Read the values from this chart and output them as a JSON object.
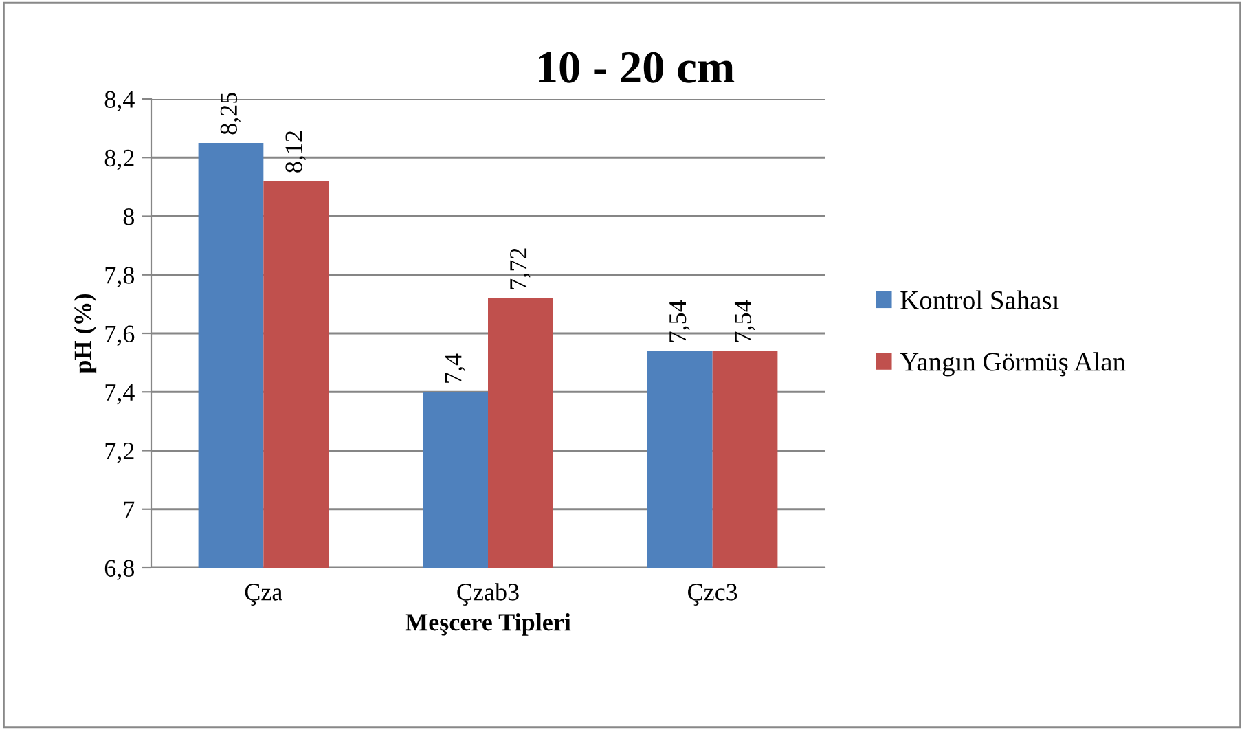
{
  "chart_data": {
    "type": "bar",
    "title": "10 - 20 cm",
    "xlabel": "Meşcere Tipleri",
    "ylabel": "pH (%)",
    "categories": [
      "Çza",
      "Çzab3",
      "Çzc3"
    ],
    "series": [
      {
        "name": "Kontrol Sahası",
        "color": "#4f81bd",
        "values": [
          8.25,
          7.4,
          7.54
        ],
        "value_labels": [
          "8,25",
          "7,4",
          "7,54"
        ]
      },
      {
        "name": "Yangın Görmüş Alan",
        "color": "#c0504d",
        "values": [
          8.12,
          7.72,
          7.54
        ],
        "value_labels": [
          "8,12",
          "7,72",
          "7,54"
        ]
      }
    ],
    "ylim": [
      6.8,
      8.4
    ],
    "yticks": [
      {
        "value": 6.8,
        "label": "6,8"
      },
      {
        "value": 7,
        "label": "7"
      },
      {
        "value": 7.2,
        "label": "7,2"
      },
      {
        "value": 7.4,
        "label": "7,4"
      },
      {
        "value": 7.6,
        "label": "7,6"
      },
      {
        "value": 7.8,
        "label": "7,8"
      },
      {
        "value": 8,
        "label": "8"
      },
      {
        "value": 8.2,
        "label": "8,2"
      },
      {
        "value": 8.4,
        "label": "8,4"
      }
    ],
    "grid": "y",
    "legend": "right"
  }
}
